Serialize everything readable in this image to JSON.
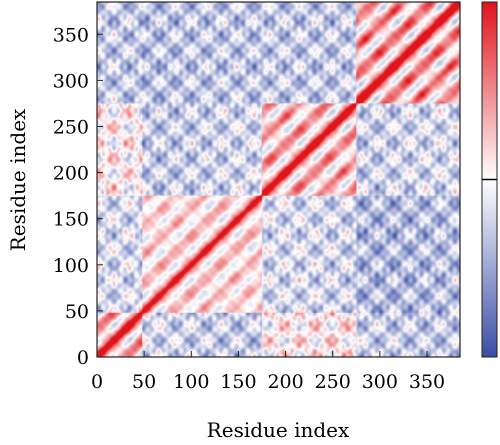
{
  "chart_data": {
    "type": "heatmap",
    "title": "",
    "xlabel": "Residue index",
    "ylabel": "Residue index",
    "xlim": [
      0,
      385
    ],
    "ylim": [
      0,
      385
    ],
    "x_ticks": [
      "0",
      "50",
      "100",
      "150",
      "200",
      "250",
      "300",
      "350"
    ],
    "y_ticks": [
      "0",
      "50",
      "100",
      "150",
      "200",
      "250",
      "300",
      "350"
    ],
    "colormap": {
      "low": "#3a4ea6",
      "mid": "#ffffff",
      "high": "#e0141b",
      "colorbar_labels": []
    },
    "blocks": [
      {
        "from": 0,
        "to": 48,
        "strength": "high"
      },
      {
        "from": 48,
        "to": 175,
        "strength": "medium"
      },
      {
        "from": 175,
        "to": 275,
        "strength": "high"
      },
      {
        "from": 275,
        "to": 385,
        "strength": "very-high"
      }
    ],
    "diagonal": "strong positive correlation along the main diagonal"
  }
}
